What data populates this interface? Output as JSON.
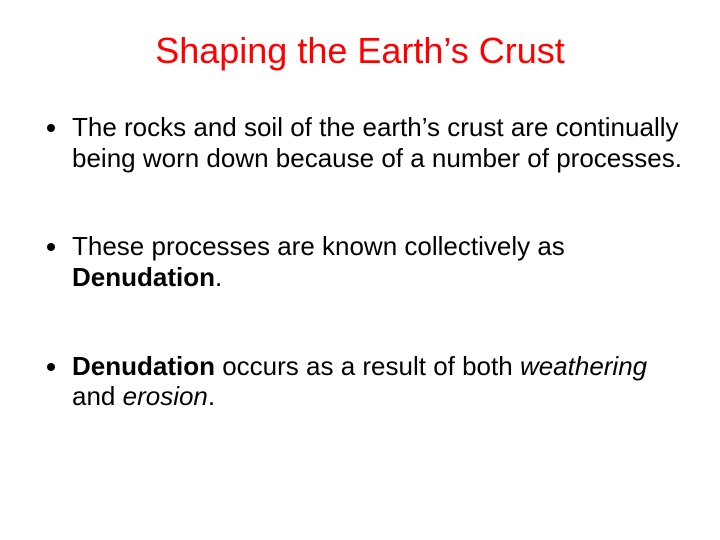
{
  "colors": {
    "title": "#ff0000",
    "body_text": "#000000",
    "background": "#ffffff"
  },
  "typography": {
    "title_fontsize": 36,
    "title_fontweight": 400,
    "body_fontsize": 26,
    "font_family": "Arial"
  },
  "title": "Shaping the Earth’s Crust",
  "bullets": [
    {
      "segments": [
        {
          "text": "The rocks and soil of the earth’s crust are continually being worn down because of a number of processes.",
          "bold": false,
          "italic": false
        }
      ]
    },
    {
      "segments": [
        {
          "text": "These processes are known collectively as ",
          "bold": false,
          "italic": false
        },
        {
          "text": "Denudation",
          "bold": true,
          "italic": false
        },
        {
          "text": ".",
          "bold": false,
          "italic": false
        }
      ]
    },
    {
      "segments": [
        {
          "text": "Denudation",
          "bold": true,
          "italic": false
        },
        {
          "text": " occurs as a result of both ",
          "bold": false,
          "italic": false
        },
        {
          "text": "weathering",
          "bold": false,
          "italic": true
        },
        {
          "text": " and ",
          "bold": false,
          "italic": false
        },
        {
          "text": "erosion",
          "bold": false,
          "italic": true
        },
        {
          "text": ".",
          "bold": false,
          "italic": false
        }
      ]
    }
  ]
}
